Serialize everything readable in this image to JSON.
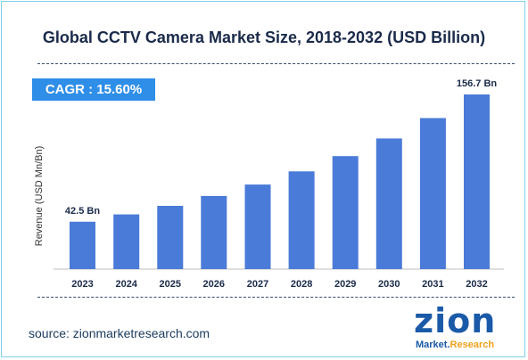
{
  "title": "Global CCTV Camera Market Size, 2018-2032 (USD Billion)",
  "cagr_label": "CAGR : 15.60%",
  "source": "source: zionmarketresearch.com",
  "logo": {
    "word": "zion",
    "sub_main": "Market.",
    "sub_accent": "Research"
  },
  "colors": {
    "bar": "#4a7bd8",
    "accent": "#2f8ee8",
    "frame": "#7fd0ea"
  },
  "chart_data": {
    "type": "bar",
    "title": "Global CCTV Camera Market Size, 2018-2032 (USD Billion)",
    "ylabel": "Revenue (USD Mn/Bn)",
    "xlabel": "",
    "categories": [
      "2023",
      "2024",
      "2025",
      "2026",
      "2027",
      "2028",
      "2029",
      "2030",
      "2031",
      "2032"
    ],
    "values": [
      42.5,
      49.1,
      56.8,
      65.6,
      75.9,
      87.7,
      101.4,
      117.2,
      135.5,
      156.7
    ],
    "data_labels": [
      {
        "index": 0,
        "text": "42.5 Bn"
      },
      {
        "index": 9,
        "text": "156.7 Bn"
      }
    ],
    "ylim": [
      0,
      165
    ],
    "grid": false,
    "legend": "none"
  }
}
